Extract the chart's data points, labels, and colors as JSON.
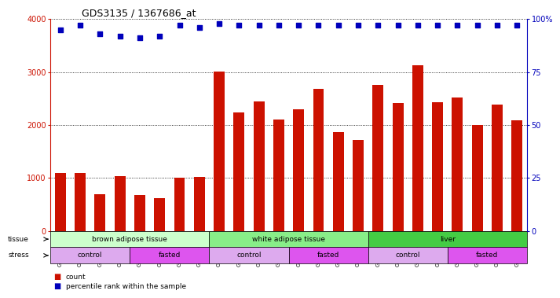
{
  "title": "GDS3135 / 1367686_at",
  "samples": [
    "GSM184414",
    "GSM184415",
    "GSM184416",
    "GSM184417",
    "GSM184418",
    "GSM184419",
    "GSM184420",
    "GSM184421",
    "GSM184422",
    "GSM184423",
    "GSM184424",
    "GSM184425",
    "GSM184426",
    "GSM184427",
    "GSM184428",
    "GSM184429",
    "GSM184430",
    "GSM184431",
    "GSM184432",
    "GSM184433",
    "GSM184434",
    "GSM184435",
    "GSM184436",
    "GSM184437"
  ],
  "counts": [
    1100,
    1100,
    700,
    1030,
    680,
    620,
    1000,
    1020,
    3010,
    2240,
    2440,
    2100,
    2290,
    2680,
    1870,
    1720,
    2750,
    2420,
    3130,
    2430,
    2520,
    2000,
    2380,
    2090
  ],
  "percentile_values": [
    95,
    97,
    93,
    92,
    91,
    92,
    97,
    96,
    98,
    97,
    97,
    97,
    97,
    97,
    97,
    97,
    97,
    97,
    97,
    97,
    97,
    97,
    97,
    97
  ],
  "bar_color": "#cc1100",
  "dot_color": "#0000bb",
  "ylim_left": [
    0,
    4000
  ],
  "ylim_right": [
    0,
    100
  ],
  "yticks_left": [
    0,
    1000,
    2000,
    3000,
    4000
  ],
  "ytick_labels_left": [
    "0",
    "1000",
    "2000",
    "3000",
    "4000"
  ],
  "yticks_right": [
    0,
    25,
    50,
    75,
    100
  ],
  "ytick_labels_right": [
    "0",
    "25",
    "50",
    "75",
    "100%"
  ],
  "tissue_groups": [
    {
      "label": "brown adipose tissue",
      "start": 0,
      "end": 8,
      "color": "#ccffcc"
    },
    {
      "label": "white adipose tissue",
      "start": 8,
      "end": 16,
      "color": "#88ee88"
    },
    {
      "label": "liver",
      "start": 16,
      "end": 24,
      "color": "#44cc44"
    }
  ],
  "stress_groups": [
    {
      "label": "control",
      "start": 0,
      "end": 4,
      "color": "#ddaaee"
    },
    {
      "label": "fasted",
      "start": 4,
      "end": 8,
      "color": "#dd55ee"
    },
    {
      "label": "control",
      "start": 8,
      "end": 12,
      "color": "#ddaaee"
    },
    {
      "label": "fasted",
      "start": 12,
      "end": 16,
      "color": "#dd55ee"
    },
    {
      "label": "control",
      "start": 16,
      "end": 20,
      "color": "#ddaaee"
    },
    {
      "label": "fasted",
      "start": 20,
      "end": 24,
      "color": "#dd55ee"
    }
  ],
  "legend_count_label": "count",
  "legend_percentile_label": "percentile rank within the sample",
  "tissue_label": "tissue",
  "stress_label": "stress",
  "tick_label_bg": "#dddddd",
  "main_bg": "#ffffff"
}
